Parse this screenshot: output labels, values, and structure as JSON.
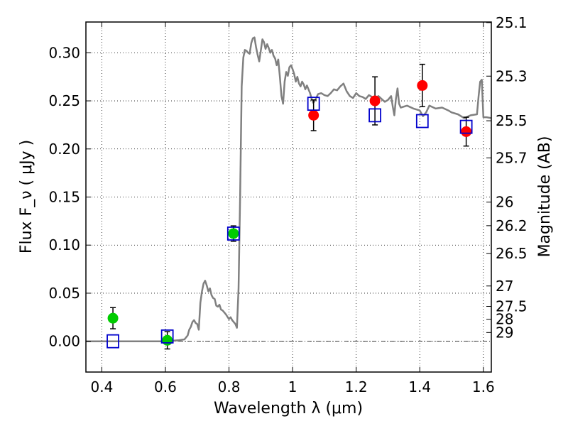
{
  "chart_data": {
    "type": "scatter",
    "xlabel": "Wavelength  λ (μm)",
    "ylabel": "Flux  F_ν  ( μJy )",
    "ylabel_right": "Magnitude (AB)",
    "xlim": [
      0.35,
      1.625
    ],
    "ylim": [
      -0.032,
      0.332
    ],
    "grid": true,
    "x_ticks": [
      {
        "value": 0.4,
        "label": "0.4"
      },
      {
        "value": 0.6,
        "label": "0.6"
      },
      {
        "value": 0.8,
        "label": "0.8"
      },
      {
        "value": 1.0,
        "label": "1"
      },
      {
        "value": 1.2,
        "label": "1.2"
      },
      {
        "value": 1.4,
        "label": "1.4"
      },
      {
        "value": 1.6,
        "label": "1.6"
      }
    ],
    "y_ticks": [
      {
        "value": 0.0,
        "label": "0.00"
      },
      {
        "value": 0.05,
        "label": "0.05"
      },
      {
        "value": 0.1,
        "label": "0.10"
      },
      {
        "value": 0.15,
        "label": "0.15"
      },
      {
        "value": 0.2,
        "label": "0.20"
      },
      {
        "value": 0.25,
        "label": "0.25"
      },
      {
        "value": 0.3,
        "label": "0.30"
      }
    ],
    "right_ticks": [
      {
        "label": "25.1",
        "flux": 0.3314
      },
      {
        "label": "25.3",
        "flux": 0.2757
      },
      {
        "label": "25.5",
        "flux": 0.2293
      },
      {
        "label": "25.7",
        "flux": 0.1907
      },
      {
        "label": "26",
        "flux": 0.1447
      },
      {
        "label": "26.2",
        "flux": 0.1202
      },
      {
        "label": "26.5",
        "flux": 0.0912
      },
      {
        "label": "27",
        "flux": 0.0575
      },
      {
        "label": "27.5",
        "flux": 0.0363
      },
      {
        "label": "28",
        "flux": 0.0229
      },
      {
        "label": "29",
        "flux": 0.0091
      }
    ],
    "template_spectrum": {
      "color": "#808080",
      "points": [
        [
          0.35,
          0.0
        ],
        [
          0.6,
          0.0
        ],
        [
          0.62,
          0.0005
        ],
        [
          0.64,
          0.001
        ],
        [
          0.66,
          0.002
        ],
        [
          0.67,
          0.006
        ],
        [
          0.675,
          0.012
        ],
        [
          0.68,
          0.015
        ],
        [
          0.685,
          0.02
        ],
        [
          0.69,
          0.022
        ],
        [
          0.695,
          0.019
        ],
        [
          0.7,
          0.018
        ],
        [
          0.705,
          0.012
        ],
        [
          0.71,
          0.04
        ],
        [
          0.715,
          0.052
        ],
        [
          0.72,
          0.06
        ],
        [
          0.725,
          0.063
        ],
        [
          0.73,
          0.058
        ],
        [
          0.735,
          0.052
        ],
        [
          0.74,
          0.055
        ],
        [
          0.745,
          0.048
        ],
        [
          0.75,
          0.045
        ],
        [
          0.755,
          0.044
        ],
        [
          0.76,
          0.037
        ],
        [
          0.765,
          0.036
        ],
        [
          0.77,
          0.038
        ],
        [
          0.775,
          0.033
        ],
        [
          0.78,
          0.032
        ],
        [
          0.79,
          0.028
        ],
        [
          0.8,
          0.023
        ],
        [
          0.805,
          0.025
        ],
        [
          0.81,
          0.022
        ],
        [
          0.815,
          0.02
        ],
        [
          0.82,
          0.018
        ],
        [
          0.825,
          0.014
        ],
        [
          0.83,
          0.055
        ],
        [
          0.835,
          0.15
        ],
        [
          0.84,
          0.265
        ],
        [
          0.845,
          0.295
        ],
        [
          0.85,
          0.303
        ],
        [
          0.855,
          0.302
        ],
        [
          0.86,
          0.3
        ],
        [
          0.865,
          0.299
        ],
        [
          0.87,
          0.31
        ],
        [
          0.875,
          0.315
        ],
        [
          0.88,
          0.316
        ],
        [
          0.885,
          0.306
        ],
        [
          0.89,
          0.298
        ],
        [
          0.895,
          0.291
        ],
        [
          0.9,
          0.302
        ],
        [
          0.905,
          0.314
        ],
        [
          0.91,
          0.311
        ],
        [
          0.915,
          0.304
        ],
        [
          0.92,
          0.309
        ],
        [
          0.925,
          0.305
        ],
        [
          0.93,
          0.3
        ],
        [
          0.935,
          0.303
        ],
        [
          0.94,
          0.297
        ],
        [
          0.945,
          0.294
        ],
        [
          0.95,
          0.287
        ],
        [
          0.955,
          0.293
        ],
        [
          0.96,
          0.275
        ],
        [
          0.965,
          0.255
        ],
        [
          0.97,
          0.247
        ],
        [
          0.975,
          0.27
        ],
        [
          0.98,
          0.28
        ],
        [
          0.985,
          0.276
        ],
        [
          0.99,
          0.285
        ],
        [
          0.995,
          0.287
        ],
        [
          1.0,
          0.283
        ],
        [
          1.005,
          0.278
        ],
        [
          1.01,
          0.27
        ],
        [
          1.015,
          0.275
        ],
        [
          1.02,
          0.268
        ],
        [
          1.025,
          0.265
        ],
        [
          1.03,
          0.27
        ],
        [
          1.035,
          0.267
        ],
        [
          1.04,
          0.262
        ],
        [
          1.045,
          0.266
        ],
        [
          1.05,
          0.262
        ],
        [
          1.055,
          0.258
        ],
        [
          1.06,
          0.252
        ],
        [
          1.065,
          0.248
        ],
        [
          1.07,
          0.25
        ],
        [
          1.08,
          0.257
        ],
        [
          1.09,
          0.258
        ],
        [
          1.1,
          0.256
        ],
        [
          1.11,
          0.255
        ],
        [
          1.12,
          0.258
        ],
        [
          1.13,
          0.262
        ],
        [
          1.14,
          0.261
        ],
        [
          1.15,
          0.265
        ],
        [
          1.16,
          0.268
        ],
        [
          1.17,
          0.26
        ],
        [
          1.18,
          0.255
        ],
        [
          1.19,
          0.253
        ],
        [
          1.2,
          0.258
        ],
        [
          1.21,
          0.255
        ],
        [
          1.22,
          0.254
        ],
        [
          1.23,
          0.252
        ],
        [
          1.24,
          0.256
        ],
        [
          1.25,
          0.254
        ],
        [
          1.26,
          0.253
        ],
        [
          1.27,
          0.255
        ],
        [
          1.28,
          0.252
        ],
        [
          1.29,
          0.249
        ],
        [
          1.3,
          0.251
        ],
        [
          1.31,
          0.255
        ],
        [
          1.315,
          0.244
        ],
        [
          1.32,
          0.235
        ],
        [
          1.325,
          0.252
        ],
        [
          1.33,
          0.263
        ],
        [
          1.335,
          0.247
        ],
        [
          1.34,
          0.243
        ],
        [
          1.36,
          0.245
        ],
        [
          1.38,
          0.242
        ],
        [
          1.4,
          0.24
        ],
        [
          1.41,
          0.234
        ],
        [
          1.42,
          0.238
        ],
        [
          1.43,
          0.245
        ],
        [
          1.45,
          0.242
        ],
        [
          1.47,
          0.243
        ],
        [
          1.49,
          0.24
        ],
        [
          1.5,
          0.238
        ],
        [
          1.52,
          0.236
        ],
        [
          1.54,
          0.232
        ],
        [
          1.56,
          0.235
        ],
        [
          1.58,
          0.236
        ],
        [
          1.585,
          0.255
        ],
        [
          1.59,
          0.27
        ],
        [
          1.595,
          0.272
        ],
        [
          1.6,
          0.233
        ],
        [
          1.61,
          0.233
        ],
        [
          1.625,
          0.232
        ]
      ]
    },
    "series": [
      {
        "marker": "filled-circle",
        "color": "#00cc00",
        "points": [
          {
            "x": 0.435,
            "y": 0.024,
            "err": 0.011
          },
          {
            "x": 0.606,
            "y": 0.001,
            "err": 0.009
          },
          {
            "x": 0.814,
            "y": 0.112,
            "err": 0.008
          }
        ]
      },
      {
        "marker": "filled-circle",
        "color": "#ff0000",
        "points": [
          {
            "x": 1.066,
            "y": 0.235,
            "err": 0.016
          },
          {
            "x": 1.259,
            "y": 0.25,
            "err": 0.025
          },
          {
            "x": 1.408,
            "y": 0.266,
            "err": 0.022
          },
          {
            "x": 1.546,
            "y": 0.218,
            "err": 0.015
          }
        ]
      },
      {
        "marker": "open-square",
        "color": "#0000cc",
        "points": [
          {
            "x": 0.435,
            "y": 0.0
          },
          {
            "x": 0.606,
            "y": 0.005
          },
          {
            "x": 0.814,
            "y": 0.112
          },
          {
            "x": 1.066,
            "y": 0.247
          },
          {
            "x": 1.259,
            "y": 0.235
          },
          {
            "x": 1.408,
            "y": 0.229
          },
          {
            "x": 1.546,
            "y": 0.223
          }
        ]
      }
    ]
  }
}
